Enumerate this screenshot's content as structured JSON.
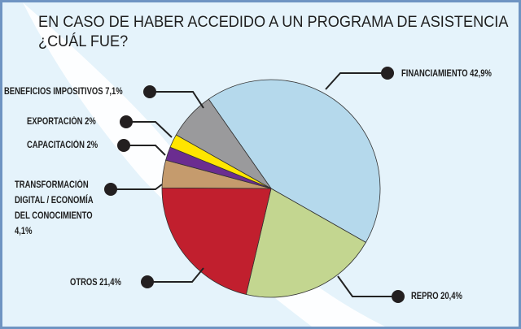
{
  "chart_data": {
    "type": "pie",
    "title_line1": "EN CASO DE HABER ACCEDIDO A UN PROGRAMA DE ASISTENCIA",
    "title_line2": "¿CUÁL FUE?",
    "slices": [
      {
        "label": "FINANCIAMIENTO",
        "value": 42.9,
        "value_text": "42,9%",
        "color": "#b5d9ec"
      },
      {
        "label": "REPRO",
        "value": 20.4,
        "value_text": "20,4%",
        "color": "#c3d690"
      },
      {
        "label": "OTROS",
        "value": 21.4,
        "value_text": "21,4%",
        "color": "#c11f2e"
      },
      {
        "label": "TRANSFORMACIÓN DIGITAL / ECONOMÍA DEL CONOCIMIENTO",
        "label_lines": [
          "TRANSFORMACIÓN",
          "DIGITAL / ECONOMÍA",
          "DEL CONOCIMIENTO"
        ],
        "value": 4.1,
        "value_text": "4,1%",
        "color": "#c59b6d"
      },
      {
        "label": "CAPACITACIÓN",
        "value": 2,
        "value_text": "2%",
        "color": "#6b2d90"
      },
      {
        "label": "EXPORTACIÓN",
        "value": 2,
        "value_text": "2%",
        "color": "#ffe500"
      },
      {
        "label": "BENEFICIOS IMPOSITIVOS",
        "value": 7.1,
        "value_text": "7,1%",
        "color": "#9a9a9c"
      }
    ],
    "legend": "leader-line labels around pie"
  }
}
